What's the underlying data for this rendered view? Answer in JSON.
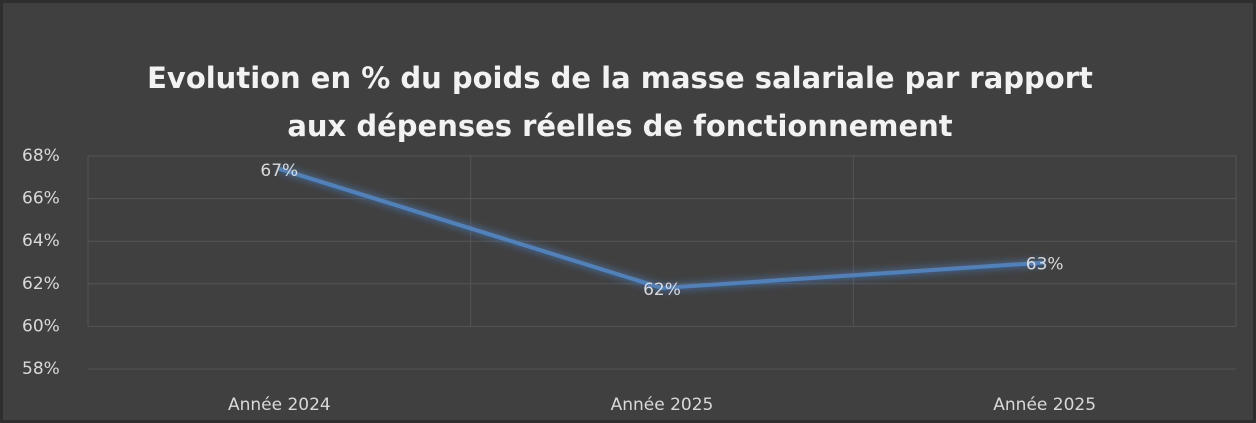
{
  "chart_data": {
    "type": "line",
    "title": [
      "Evolution en % du poids de la masse salariale par rapport",
      "aux dépenses réelles de fonctionnement"
    ],
    "categories": [
      "Année 2024",
      "Année 2025",
      "Année 2025"
    ],
    "series": [
      {
        "color": "#4f81bd",
        "values": [
          67.4,
          61.8,
          63.0
        ],
        "value_labels": [
          "67%",
          "62%",
          "63%"
        ]
      }
    ],
    "ylim": [
      58,
      68
    ],
    "yticks": [
      {
        "value": 58,
        "label": "58%"
      },
      {
        "value": 60,
        "label": "60%"
      },
      {
        "value": 62,
        "label": "62%"
      },
      {
        "value": 64,
        "label": "64%"
      },
      {
        "value": 66,
        "label": "66%"
      },
      {
        "value": 68,
        "label": "68%"
      }
    ],
    "grid": true
  }
}
